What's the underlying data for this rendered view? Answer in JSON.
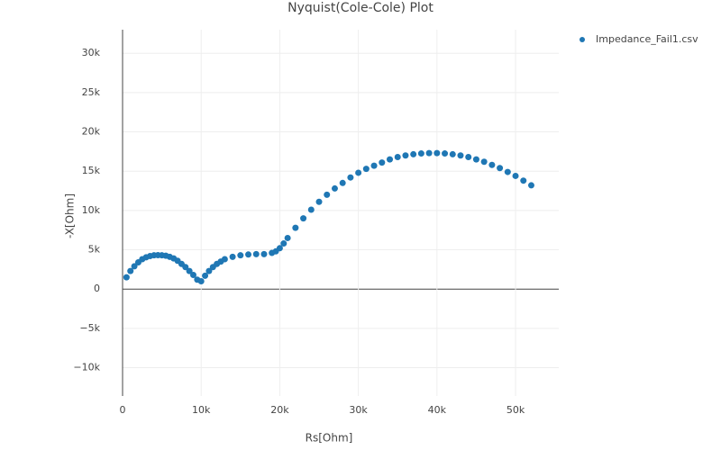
{
  "chart_data": {
    "type": "scatter",
    "title": "Nyquist(Cole-Cole) Plot",
    "x_label": "Rs[Ohm]",
    "y_label": "-X[Ohm]",
    "xlim": [
      0,
      55500
    ],
    "ylim": [
      -13600,
      33000
    ],
    "xticks": [
      0,
      {
        "value": 10000,
        "label": "10k"
      },
      {
        "value": 20000,
        "label": "20k"
      },
      {
        "value": 30000,
        "label": "30k"
      },
      {
        "value": 40000,
        "label": "40k"
      },
      {
        "value": 50000,
        "label": "50k"
      }
    ],
    "yticks": [
      {
        "value": -10000,
        "label": "−10k"
      },
      {
        "value": -5000,
        "label": "−5k"
      },
      0,
      {
        "value": 5000,
        "label": "5k"
      },
      {
        "value": 10000,
        "label": "10k"
      },
      {
        "value": 15000,
        "label": "15k"
      },
      {
        "value": 20000,
        "label": "20k"
      },
      {
        "value": 25000,
        "label": "25k"
      },
      {
        "value": 30000,
        "label": "30k"
      }
    ],
    "grid": true,
    "legend": "top-right",
    "series": [
      {
        "name": "Impedance_Fail1.csv",
        "color": "#1f77b4",
        "x": [
          500,
          1000,
          1500,
          2000,
          2500,
          3000,
          3500,
          4000,
          4500,
          5000,
          5500,
          6000,
          6500,
          7000,
          7500,
          8000,
          8500,
          9000,
          9500,
          10000,
          10500,
          11000,
          11500,
          12000,
          12500,
          13000,
          14000,
          15000,
          16000,
          17000,
          18000,
          19000,
          19500,
          20000,
          20500,
          21000,
          22000,
          23000,
          24000,
          25000,
          26000,
          27000,
          28000,
          29000,
          30000,
          31000,
          32000,
          33000,
          34000,
          35000,
          36000,
          37000,
          38000,
          39000,
          40000,
          41000,
          42000,
          43000,
          44000,
          45000,
          46000,
          47000,
          48000,
          49000,
          50000,
          51000,
          52000
        ],
        "values": [
          1500,
          2300,
          2900,
          3400,
          3800,
          4050,
          4200,
          4300,
          4320,
          4300,
          4250,
          4100,
          3900,
          3600,
          3200,
          2800,
          2300,
          1800,
          1200,
          1000,
          1700,
          2300,
          2800,
          3200,
          3500,
          3800,
          4100,
          4300,
          4400,
          4450,
          4450,
          4600,
          4800,
          5200,
          5800,
          6500,
          7800,
          9000,
          10100,
          11100,
          12000,
          12800,
          13500,
          14200,
          14800,
          15300,
          15700,
          16100,
          16500,
          16800,
          17000,
          17150,
          17250,
          17300,
          17300,
          17250,
          17150,
          17000,
          16800,
          16500,
          16200,
          15800,
          15400,
          14900,
          14400,
          13800,
          13200
        ]
      }
    ]
  }
}
